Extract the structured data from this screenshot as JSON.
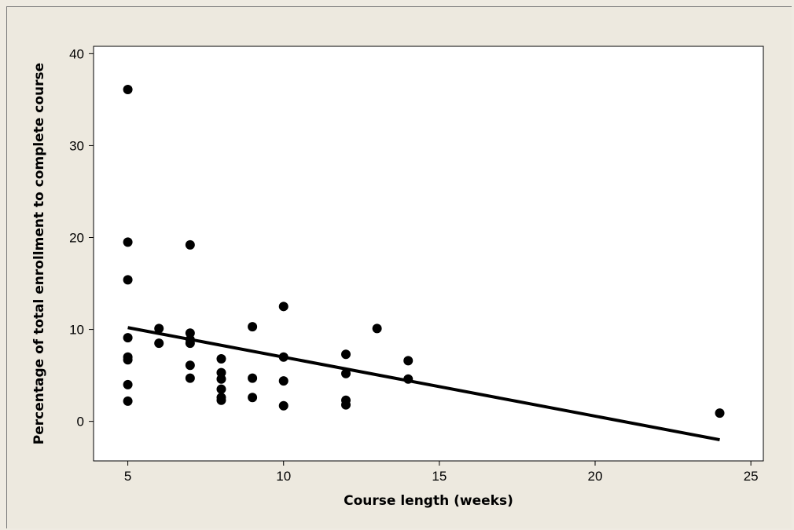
{
  "chart_data": {
    "type": "scatter",
    "title": "",
    "xlabel": "Course length (weeks)",
    "ylabel": "Percentage of total enrollment to complete course",
    "xlim": [
      3.9,
      25.4
    ],
    "ylim": [
      -4.3,
      40.8
    ],
    "xticks": [
      5,
      10,
      15,
      20,
      25
    ],
    "yticks": [
      0,
      10,
      20,
      30,
      40
    ],
    "grid": false,
    "legend": "none",
    "series": [
      {
        "points": [
          [
            5,
            36.1
          ],
          [
            5,
            19.5
          ],
          [
            5,
            15.4
          ],
          [
            5,
            9.1
          ],
          [
            5,
            7.0
          ],
          [
            5,
            6.7
          ],
          [
            5,
            4.0
          ],
          [
            5,
            2.2
          ],
          [
            6,
            10.1
          ],
          [
            6,
            8.5
          ],
          [
            7,
            19.2
          ],
          [
            7,
            9.6
          ],
          [
            7,
            8.9
          ],
          [
            7,
            8.5
          ],
          [
            7,
            6.1
          ],
          [
            7,
            4.7
          ],
          [
            8,
            6.8
          ],
          [
            8,
            5.3
          ],
          [
            8,
            4.6
          ],
          [
            8,
            3.5
          ],
          [
            8,
            2.6
          ],
          [
            8,
            2.3
          ],
          [
            9,
            10.3
          ],
          [
            9,
            4.7
          ],
          [
            9,
            2.6
          ],
          [
            10,
            12.5
          ],
          [
            10,
            7.0
          ],
          [
            10,
            4.4
          ],
          [
            10,
            1.7
          ],
          [
            12,
            7.3
          ],
          [
            12,
            5.2
          ],
          [
            12,
            2.3
          ],
          [
            12,
            1.8
          ],
          [
            13,
            10.1
          ],
          [
            14,
            6.6
          ],
          [
            14,
            4.6
          ],
          [
            24,
            0.9
          ]
        ]
      }
    ],
    "fit_line": {
      "x": [
        5,
        24
      ],
      "y": [
        10.2,
        -2.0
      ]
    },
    "colors": {
      "points": "#000000",
      "line": "#000000",
      "plot_bg": "#ffffff",
      "figure_bg": "#ede9df"
    }
  }
}
